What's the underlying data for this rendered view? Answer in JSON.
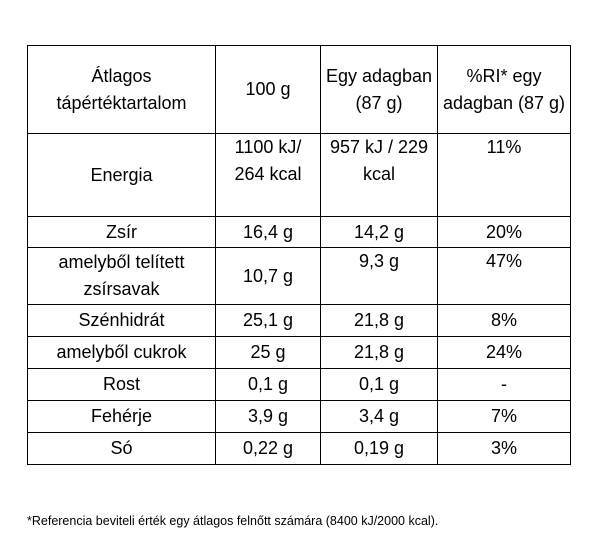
{
  "header": {
    "col1": "Átlagos tápértéktartalom",
    "col2": "100 g",
    "col3": "Egy adagban (87 g)",
    "col4": "%RI* egy adagban (87 g)"
  },
  "rows": [
    {
      "name": "Energia",
      "per100": "1100 kJ/ 264 kcal",
      "perPortion": "957 kJ / 229 kcal",
      "ri": "11%"
    },
    {
      "name": "Zsír",
      "per100": "16,4 g",
      "perPortion": "14,2 g",
      "ri": "20%"
    },
    {
      "name": "amelyből telített zsírsavak",
      "per100": "10,7 g",
      "perPortion": "9,3 g",
      "ri": "47%"
    },
    {
      "name": "Szénhidrát",
      "per100": "25,1 g",
      "perPortion": "21,8 g",
      "ri": "8%"
    },
    {
      "name": "amelyből cukrok",
      "per100": "25 g",
      "perPortion": "21,8 g",
      "ri": "24%"
    },
    {
      "name": "Rost",
      "per100": "0,1 g",
      "perPortion": "0,1 g",
      "ri": "-"
    },
    {
      "name": "Fehérje",
      "per100": "3,9 g",
      "perPortion": "3,4 g",
      "ri": "7%"
    },
    {
      "name": "Só",
      "per100": "0,22 g",
      "perPortion": "0,19 g",
      "ri": "3%"
    }
  ],
  "footnote": "*Referencia beviteli érték egy átlagos felnőtt számára (8400 kJ/2000 kcal)."
}
